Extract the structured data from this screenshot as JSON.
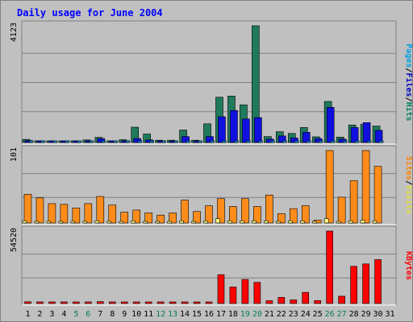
{
  "chart_data": {
    "type": "bar",
    "title": "Daily usage for June 2004",
    "categories": [
      "1",
      "2",
      "3",
      "4",
      "5",
      "6",
      "7",
      "8",
      "9",
      "10",
      "11",
      "12",
      "13",
      "14",
      "15",
      "16",
      "17",
      "18",
      "19",
      "20",
      "21",
      "22",
      "23",
      "24",
      "25",
      "26",
      "27",
      "28",
      "29",
      "30",
      "31"
    ],
    "weekend_days": [
      5,
      6,
      12,
      13,
      19,
      20,
      26,
      27
    ],
    "panels": [
      {
        "name": "top",
        "ymax_label": "4123",
        "ymax": 4123,
        "legend": [
          {
            "text": "Pages",
            "color": "#00a0e0"
          },
          {
            "text": "/",
            "color": "#000000"
          },
          {
            "text": "Files",
            "color": "#0000c0"
          },
          {
            "text": "/",
            "color": "#000000"
          },
          {
            "text": "Hits",
            "color": "#008060"
          }
        ],
        "series": [
          {
            "name": "Hits",
            "color": "#1f7a5c",
            "values": [
              110,
              60,
              50,
              40,
              40,
              90,
              180,
              60,
              100,
              540,
              300,
              80,
              80,
              440,
              80,
              660,
              1600,
              1640,
              1330,
              4123,
              210,
              380,
              320,
              530,
              200,
              1450,
              190,
              620,
              640,
              580,
              0
            ]
          },
          {
            "name": "Files",
            "color": "#1010e0",
            "values": [
              70,
              30,
              20,
              20,
              20,
              60,
              140,
              40,
              60,
              140,
              90,
              60,
              40,
              210,
              40,
              210,
              910,
              1130,
              830,
              880,
              120,
              230,
              160,
              360,
              140,
              1240,
              120,
              530,
              700,
              430,
              0
            ]
          },
          {
            "name": "Pages",
            "color": "#00a0e0",
            "values": [
              12,
              6,
              5,
              4,
              4,
              6,
              10,
              5,
              6,
              8,
              8,
              6,
              6,
              12,
              6,
              8,
              25,
              25,
              20,
              30,
              8,
              10,
              8,
              14,
              8,
              30,
              8,
              14,
              16,
              14,
              0
            ]
          }
        ]
      },
      {
        "name": "middle",
        "ymax_label": "101",
        "ymax": 101,
        "legend": [
          {
            "text": "Sites",
            "color": "#ff8000"
          },
          {
            "text": "/",
            "color": "#000000"
          },
          {
            "text": "Visits",
            "color": "#e0e040"
          }
        ],
        "series": [
          {
            "name": "Visits",
            "color": "#ff8c1a",
            "values": [
              40,
              35,
              27,
              26,
              21,
              27,
              37,
              25,
              15,
              18,
              14,
              11,
              14,
              32,
              16,
              24,
              34,
              23,
              34,
              23,
              39,
              13,
              20,
              24,
              4,
              101,
              36,
              59,
              101,
              79,
              0
            ]
          },
          {
            "name": "Sites",
            "color": "#ffff80",
            "values": [
              3,
              2,
              2,
              2,
              2,
              2,
              3,
              2,
              2,
              3,
              2,
              2,
              2,
              3,
              2,
              3,
              6,
              3,
              3,
              3,
              3,
              2,
              3,
              3,
              2,
              6,
              2,
              3,
              4,
              3,
              0
            ]
          }
        ]
      },
      {
        "name": "bottom",
        "ymax_label": "54520",
        "ymax": 54520,
        "legend": [
          {
            "text": "KBytes",
            "color": "#ff0000"
          }
        ],
        "series": [
          {
            "name": "KBytes",
            "color": "#ff0000",
            "values": [
              1300,
              700,
              600,
              500,
              500,
              900,
              1400,
              700,
              1000,
              700,
              700,
              700,
              700,
              1100,
              800,
              1100,
              21700,
              12400,
              18100,
              15900,
              2100,
              4600,
              2700,
              8400,
              2200,
              54520,
              5500,
              28000,
              29800,
              33000,
              0
            ]
          }
        ]
      }
    ]
  }
}
